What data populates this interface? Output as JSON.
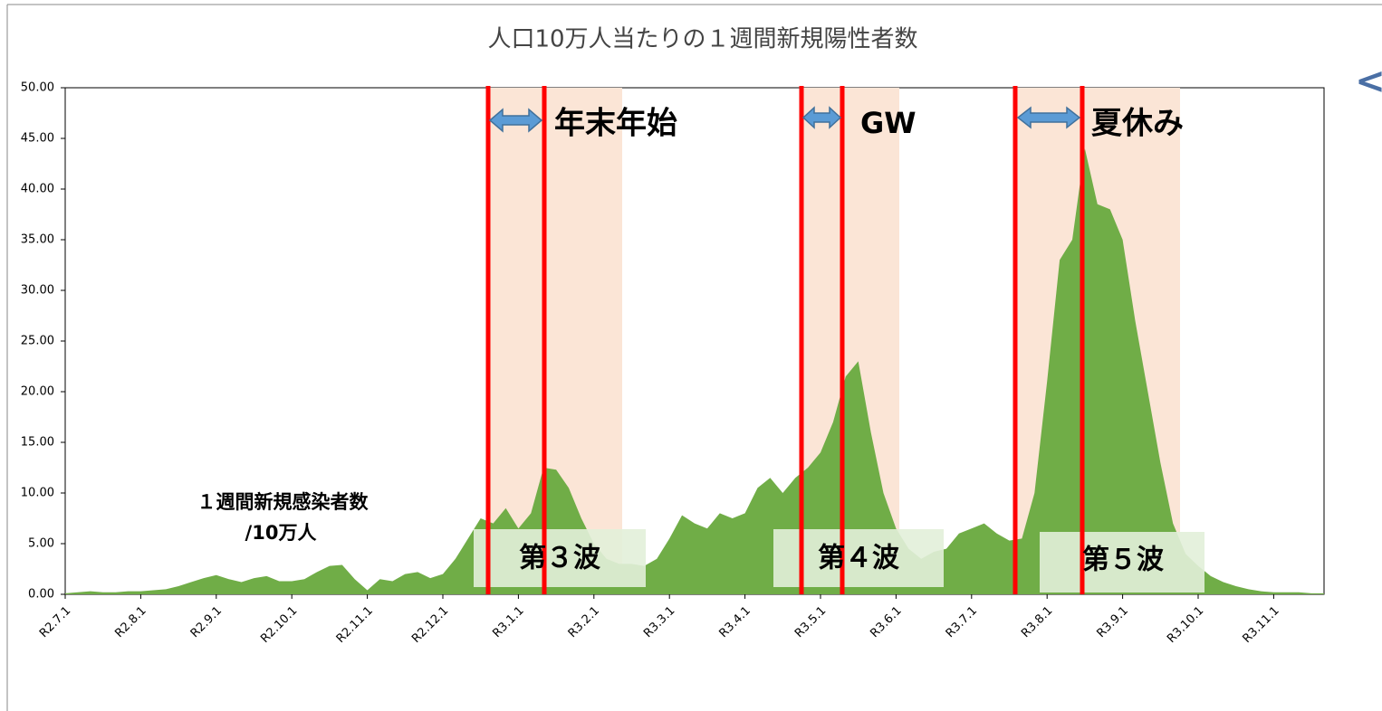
{
  "chart_data": {
    "type": "area",
    "title": "人口10万人当たりの１週間新規陽性者数",
    "series_label": [
      "１週間新規感染者数",
      "/10万人"
    ],
    "annotations": [
      "年末年始",
      "GW",
      "夏休み",
      "第３波",
      "第４波",
      "第５波"
    ],
    "categories": [
      "R2.7.1",
      null,
      null,
      null,
      null,
      null,
      "R2.8.1",
      null,
      null,
      null,
      null,
      null,
      "R2.9.1",
      null,
      null,
      null,
      null,
      null,
      "R2.10.1",
      null,
      null,
      null,
      null,
      null,
      "R2.11.1",
      null,
      null,
      null,
      null,
      null,
      "R2.12.1",
      null,
      null,
      null,
      null,
      null,
      "R3.1.1",
      null,
      null,
      null,
      null,
      null,
      "R3.2.1",
      null,
      null,
      null,
      null,
      null,
      "R3.3.1",
      null,
      null,
      null,
      null,
      null,
      "R3.4.1",
      null,
      null,
      null,
      null,
      null,
      "R3.5.1",
      null,
      null,
      null,
      null,
      null,
      "R3.6.1",
      null,
      null,
      null,
      null,
      null,
      "R3.7.1",
      null,
      null,
      null,
      null,
      null,
      "R3.8.1",
      null,
      null,
      null,
      null,
      null,
      "R3.9.1",
      null,
      null,
      null,
      null,
      null,
      "R3.10.1",
      null,
      null,
      null,
      null,
      null,
      "R3.11.1",
      null,
      null,
      null,
      null
    ],
    "values": [
      0.1,
      0.2,
      0.3,
      0.2,
      0.2,
      0.3,
      0.3,
      0.4,
      0.5,
      0.8,
      1.2,
      1.6,
      1.9,
      1.5,
      1.2,
      1.6,
      1.8,
      1.3,
      1.3,
      1.5,
      2.2,
      2.8,
      2.9,
      1.5,
      0.4,
      1.5,
      1.3,
      2.0,
      2.2,
      1.6,
      2.0,
      3.5,
      5.5,
      7.5,
      7.0,
      8.5,
      6.5,
      8.0,
      12.5,
      12.3,
      10.5,
      7.5,
      5.0,
      3.5,
      3.0,
      3.0,
      2.8,
      3.5,
      5.5,
      7.8,
      7.0,
      6.5,
      8.0,
      7.5,
      8.0,
      10.5,
      11.5,
      10.0,
      11.5,
      12.5,
      14.0,
      17.0,
      21.5,
      23.0,
      16.0,
      10.0,
      6.5,
      4.5,
      3.5,
      4.2,
      4.5,
      6.0,
      6.5,
      7.0,
      6.0,
      5.3,
      5.5,
      10.0,
      21.0,
      33.0,
      35.0,
      44.0,
      38.5,
      38.0,
      35.0,
      27.0,
      20.0,
      13.0,
      7.0,
      4.0,
      2.8,
      1.8,
      1.2,
      0.8,
      0.5,
      0.3,
      0.2,
      0.2,
      0.2,
      0.1,
      0.1
    ],
    "color": "#70ad47",
    "ylim": [
      0,
      50
    ],
    "yticks": [
      {
        "value": 0,
        "label": "0.00"
      },
      {
        "value": 5,
        "label": "5.00"
      },
      {
        "value": 10,
        "label": "10.00"
      },
      {
        "value": 15,
        "label": "15.00"
      },
      {
        "value": 20,
        "label": "20.00"
      },
      {
        "value": 25,
        "label": "25.00"
      },
      {
        "value": 30,
        "label": "30.00"
      },
      {
        "value": 35,
        "label": "35.00"
      },
      {
        "value": 40,
        "label": "40.00"
      },
      {
        "value": 45,
        "label": "45.00"
      },
      {
        "value": 50,
        "label": "50.00"
      }
    ]
  }
}
